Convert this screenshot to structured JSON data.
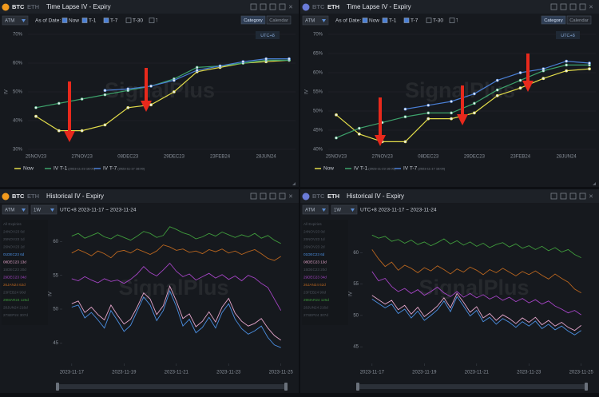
{
  "watermark": "SignalPlus",
  "panels": [
    {
      "tabs": [
        "BTC",
        "ETH"
      ],
      "active": 0,
      "title": "Time Lapse IV - Expiry",
      "selects": [
        "ATM"
      ],
      "as_of": "As of Date:",
      "checks": [
        "Now",
        "T-1",
        "T-7",
        "T-30",
        "T-"
      ],
      "checked": [
        true,
        true,
        true,
        false,
        false
      ],
      "buttons": [
        "Category",
        "Calendar"
      ],
      "timezone": "UTC+8"
    },
    {
      "tabs": [
        "BTC",
        "ETH"
      ],
      "active": 1,
      "title": "Time Lapse IV - Expiry",
      "selects": [
        "ATM"
      ],
      "as_of": "As of Date:",
      "checks": [
        "Now",
        "T-1",
        "T-7",
        "T-30",
        "T-"
      ],
      "checked": [
        true,
        true,
        true,
        false,
        false
      ],
      "buttons": [
        "Category",
        "Calendar"
      ],
      "timezone": "UTC+8"
    },
    {
      "tabs": [
        "BTC",
        "ETH"
      ],
      "active": 0,
      "title": "Historical IV - Expiry",
      "selects": [
        "ATM",
        "1W"
      ],
      "range": "UTC+8 2023-11-17 ~ 2023-11-24"
    },
    {
      "tabs": [
        "BTC",
        "ETH"
      ],
      "active": 1,
      "title": "Historical IV - Expiry",
      "selects": [
        "ATM",
        "1W"
      ],
      "range": "UTC+8 2023-11-17 ~ 2023-11-24"
    }
  ],
  "chart_data": [
    {
      "type": "line",
      "y_label": "IV",
      "grid": true,
      "categories": [
        "25NOV23",
        null,
        "27NOV23",
        null,
        "08DEC23",
        null,
        "29DEC23",
        null,
        "23FEB24",
        null,
        "28JUN24",
        null
      ],
      "ylim": [
        30,
        70
      ],
      "yticks": [
        {
          "value": 30,
          "label": "30%"
        },
        {
          "value": 40,
          "label": "40%"
        },
        {
          "value": 50,
          "label": "50%"
        },
        {
          "value": 60,
          "label": "60%"
        },
        {
          "value": 70,
          "label": "70%"
        }
      ],
      "series": [
        {
          "name": "Now",
          "color": "#e3dd4a",
          "values": [
            41.5,
            36.5,
            36.5,
            38.5,
            44.5,
            45.5,
            50,
            57,
            58.5,
            60,
            60.5,
            61
          ]
        },
        {
          "name": "IV T-1",
          "stamp": "(2023-11-23 16:00)",
          "color": "#3da36c",
          "values": [
            44.5,
            46,
            47.5,
            49,
            50.5,
            52,
            54.5,
            58.5,
            59,
            60,
            61,
            61
          ]
        },
        {
          "name": "IV T-7",
          "stamp": "(2023-11-17 16:00)",
          "color": "#4a7fd6",
          "values": [
            null,
            null,
            null,
            50.5,
            51,
            52,
            54,
            57.5,
            59,
            60.5,
            61.5,
            61.5
          ]
        }
      ]
    },
    {
      "type": "line",
      "y_label": "IV",
      "grid": true,
      "categories": [
        "25NOV23",
        null,
        "27NOV23",
        null,
        "08DEC23",
        null,
        "29DEC23",
        null,
        "23FEB24",
        null,
        "28JUN24",
        null
      ],
      "ylim": [
        40,
        70
      ],
      "yticks": [
        {
          "value": 40,
          "label": "40%"
        },
        {
          "value": 45,
          "label": "45%"
        },
        {
          "value": 50,
          "label": "50%"
        },
        {
          "value": 55,
          "label": "55%"
        },
        {
          "value": 60,
          "label": "60%"
        },
        {
          "value": 65,
          "label": "65%"
        },
        {
          "value": 70,
          "label": "70%"
        }
      ],
      "series": [
        {
          "name": "Now",
          "color": "#e3dd4a",
          "values": [
            49,
            44,
            42,
            42,
            48,
            48,
            49.5,
            54,
            56,
            58.5,
            60.5,
            61
          ]
        },
        {
          "name": "IV T-1",
          "stamp": "(2023-11-23 16:00)",
          "color": "#3da36c",
          "values": [
            43,
            45.5,
            47,
            48.5,
            49.5,
            49.5,
            52,
            55.5,
            58,
            60.5,
            62,
            62
          ]
        },
        {
          "name": "IV T-7",
          "stamp": "(2023-11-17 16:00)",
          "color": "#4a7fd6",
          "values": [
            null,
            null,
            null,
            50.5,
            51.5,
            52.5,
            54.5,
            58,
            60,
            61,
            63,
            62.5
          ]
        }
      ]
    },
    {
      "type": "timeseries",
      "y_label": "IV",
      "grid": false,
      "x": [
        0,
        0.25,
        0.5,
        0.75,
        1,
        1.25,
        1.5,
        1.75,
        2,
        2.25,
        2.5,
        2.75,
        3,
        3.25,
        3.5,
        3.75,
        4,
        4.25,
        4.5,
        4.75,
        5,
        5.25,
        5.5,
        5.75,
        6,
        6.25,
        6.5,
        6.75,
        7,
        7.25,
        7.5,
        7.75,
        8
      ],
      "xlim": [
        -0.3,
        8.1
      ],
      "xticks": [
        {
          "value": 0,
          "label": "2023-11-17"
        },
        {
          "value": 2,
          "label": "2023-11-19"
        },
        {
          "value": 4,
          "label": "2023-11-21"
        },
        {
          "value": 6,
          "label": "2023-11-23"
        },
        {
          "value": 8,
          "label": "2023-11-25"
        }
      ],
      "ylim": [
        43.5,
        63
      ],
      "yticks": [
        45,
        50,
        55,
        60
      ],
      "sidebar": [
        "All Expiries",
        "24NOV23 0d",
        "25NOV23 1d",
        "26NOV23 2d",
        "01DEC23 6d",
        "08DEC23 13d",
        "15DEC23 20d",
        "29DEC23 34d",
        "26JAN24 62d",
        "23FEB24 90d",
        "29MAR24 125d",
        "28JUN24 216d",
        "27SEP24 307d"
      ],
      "series": [
        {
          "name": "29MAR24 125d",
          "color": "#3f9a3c",
          "values": [
            60.8,
            61.2,
            60.5,
            60.9,
            61.3,
            60.7,
            60.4,
            61,
            60.6,
            60.2,
            60.8,
            61.5,
            61.2,
            60.6,
            60.9,
            62.2,
            61.8,
            61.3,
            61,
            60.4,
            60.7,
            61.2,
            60.8,
            61.4,
            61,
            60.6,
            61,
            60.7,
            61.2,
            60.5,
            60.9,
            60.2,
            59.7
          ]
        },
        {
          "name": "26JAN24 62d",
          "color": "#b8651f",
          "values": [
            58.3,
            58.8,
            58.4,
            57.9,
            58.6,
            58.2,
            57.6,
            58.5,
            58.7,
            58.3,
            58.9,
            58.5,
            58.1,
            58.6,
            59.5,
            59.2,
            58.7,
            58.9,
            58.4,
            58.6,
            58.2,
            58.8,
            58.5,
            58.9,
            58.3,
            58.6,
            58.1,
            58.5,
            58.8,
            58.2,
            57.5,
            57.2,
            57.8
          ]
        },
        {
          "name": "29DEC23 34d",
          "color": "#a444c4",
          "values": [
            54.5,
            54.2,
            54.8,
            54.3,
            53.9,
            54.5,
            54.1,
            54.3,
            53.8,
            54.4,
            55.2,
            56.3,
            55.4,
            54.9,
            55.8,
            56.8,
            55.6,
            54.8,
            55.2,
            54.3,
            54.8,
            55.3,
            54.6,
            55.1,
            54.4,
            54.9,
            54.2,
            55,
            54.6,
            53.8,
            53.2,
            51.5,
            49.8
          ]
        },
        {
          "name": "08DEC23 13d",
          "color": "#e6a6cc",
          "values": [
            50.8,
            51.2,
            49.5,
            50.3,
            49.2,
            48.4,
            50.6,
            49.1,
            47.8,
            48.5,
            50.3,
            52.4,
            51.5,
            49.2,
            50.5,
            53.4,
            51.2,
            48.6,
            49.3,
            47.4,
            48.2,
            49.6,
            48.1,
            50.3,
            51.6,
            49.4,
            48.2,
            47.5,
            47.9,
            48.6,
            47.2,
            46.1,
            45.4
          ]
        },
        {
          "name": "01DEC23 6d",
          "color": "#4b8fe2",
          "values": [
            50.3,
            50.6,
            48.7,
            49.5,
            48.4,
            47.2,
            49.8,
            48.3,
            46.7,
            47.6,
            49.7,
            51.8,
            50.6,
            48.3,
            49.8,
            52.7,
            50.4,
            47.5,
            48.5,
            46.5,
            47.3,
            48.8,
            47.2,
            49.5,
            50.8,
            48.5,
            47.1,
            46.3,
            46.8,
            47.5,
            45.8,
            44.7,
            44.3
          ]
        }
      ]
    },
    {
      "type": "timeseries",
      "y_label": "IV",
      "grid": false,
      "x": [
        0,
        0.25,
        0.5,
        0.75,
        1,
        1.25,
        1.5,
        1.75,
        2,
        2.25,
        2.5,
        2.75,
        3,
        3.25,
        3.5,
        3.75,
        4,
        4.25,
        4.5,
        4.75,
        5,
        5.25,
        5.5,
        5.75,
        6,
        6.25,
        6.5,
        6.75,
        7,
        7.25,
        7.5,
        7.75,
        8
      ],
      "xlim": [
        -0.3,
        8.1
      ],
      "xticks": [
        {
          "value": 0,
          "label": "2023-11-17"
        },
        {
          "value": 2,
          "label": "2023-11-19"
        },
        {
          "value": 4,
          "label": "2023-11-21"
        },
        {
          "value": 6,
          "label": "2023-11-23"
        },
        {
          "value": 8,
          "label": "2023-11-25"
        }
      ],
      "ylim": [
        44,
        65
      ],
      "yticks": [
        45,
        50,
        55,
        60
      ],
      "sidebar": [
        "All Expiries",
        "24NOV23 0d",
        "25NOV23 1d",
        "26NOV23 2d",
        "01DEC23 6d",
        "08DEC23 13d",
        "15DEC23 20d",
        "29DEC23 34d",
        "26JAN24 62d",
        "23FEB24 90d",
        "29MAR24 125d",
        "28JUN24 216d",
        "27SEP24 307d"
      ],
      "series": [
        {
          "name": "29MAR24 125d",
          "color": "#3f9a3c",
          "values": [
            62.8,
            62.3,
            62.6,
            61.8,
            62.1,
            61.5,
            62,
            61.3,
            61.7,
            61.1,
            61.6,
            62.2,
            61.4,
            61.9,
            61.2,
            61.7,
            61,
            61.5,
            60.8,
            61.3,
            61.6,
            60.9,
            61.4,
            60.7,
            61.1,
            60.5,
            61,
            60.3,
            60.8,
            60.1,
            60.5,
            59.7,
            59.2
          ]
        },
        {
          "name": "26JAN24 62d",
          "color": "#b8651f",
          "values": [
            60.5,
            59,
            57.8,
            58.5,
            57.2,
            58,
            57.5,
            56.8,
            57.6,
            57.1,
            57.9,
            57.3,
            56.6,
            57.4,
            56.9,
            57.7,
            57.2,
            56.5,
            57.3,
            56.8,
            57.5,
            56.9,
            56.3,
            57,
            56.5,
            57.1,
            56.4,
            55.8,
            56.6,
            55.9,
            55.3,
            54.2,
            53.6
          ]
        },
        {
          "name": "29DEC23 34d",
          "color": "#a444c4",
          "values": [
            57,
            55.5,
            55.9,
            54.6,
            53.8,
            54.3,
            53.5,
            54.1,
            53.2,
            53.8,
            54.5,
            53.6,
            53,
            53.8,
            52.9,
            53.5,
            52.8,
            53.3,
            52.6,
            53.1,
            52.4,
            52.9,
            52.2,
            52.7,
            52,
            52.5,
            51.8,
            52.3,
            51.5,
            51,
            50.4,
            50.8,
            50.1
          ]
        },
        {
          "name": "08DEC23 13d",
          "color": "#e6a6cc",
          "values": [
            53.2,
            52.5,
            51.8,
            52.4,
            50.9,
            51.6,
            50.2,
            51.3,
            49.8,
            50.6,
            51.5,
            52.8,
            51.2,
            53.5,
            52.1,
            50.5,
            51.4,
            49.6,
            50.3,
            49.2,
            50.1,
            49.5,
            48.7,
            49.6,
            48.9,
            49.7,
            48.5,
            49.2,
            48.3,
            48.9,
            48.1,
            47.6,
            48.4
          ]
        },
        {
          "name": "01DEC23 6d",
          "color": "#4b8fe2",
          "values": [
            52.6,
            51.9,
            51.2,
            51.8,
            50.3,
            51,
            49.6,
            50.7,
            49.2,
            50,
            50.9,
            52.3,
            50.6,
            53,
            51.5,
            49.9,
            50.8,
            49,
            49.7,
            48.6,
            49.5,
            48.9,
            48.1,
            49,
            48.3,
            49.1,
            47.9,
            48.6,
            47.7,
            48.3,
            47.5,
            46.9,
            47.6
          ]
        }
      ]
    }
  ]
}
